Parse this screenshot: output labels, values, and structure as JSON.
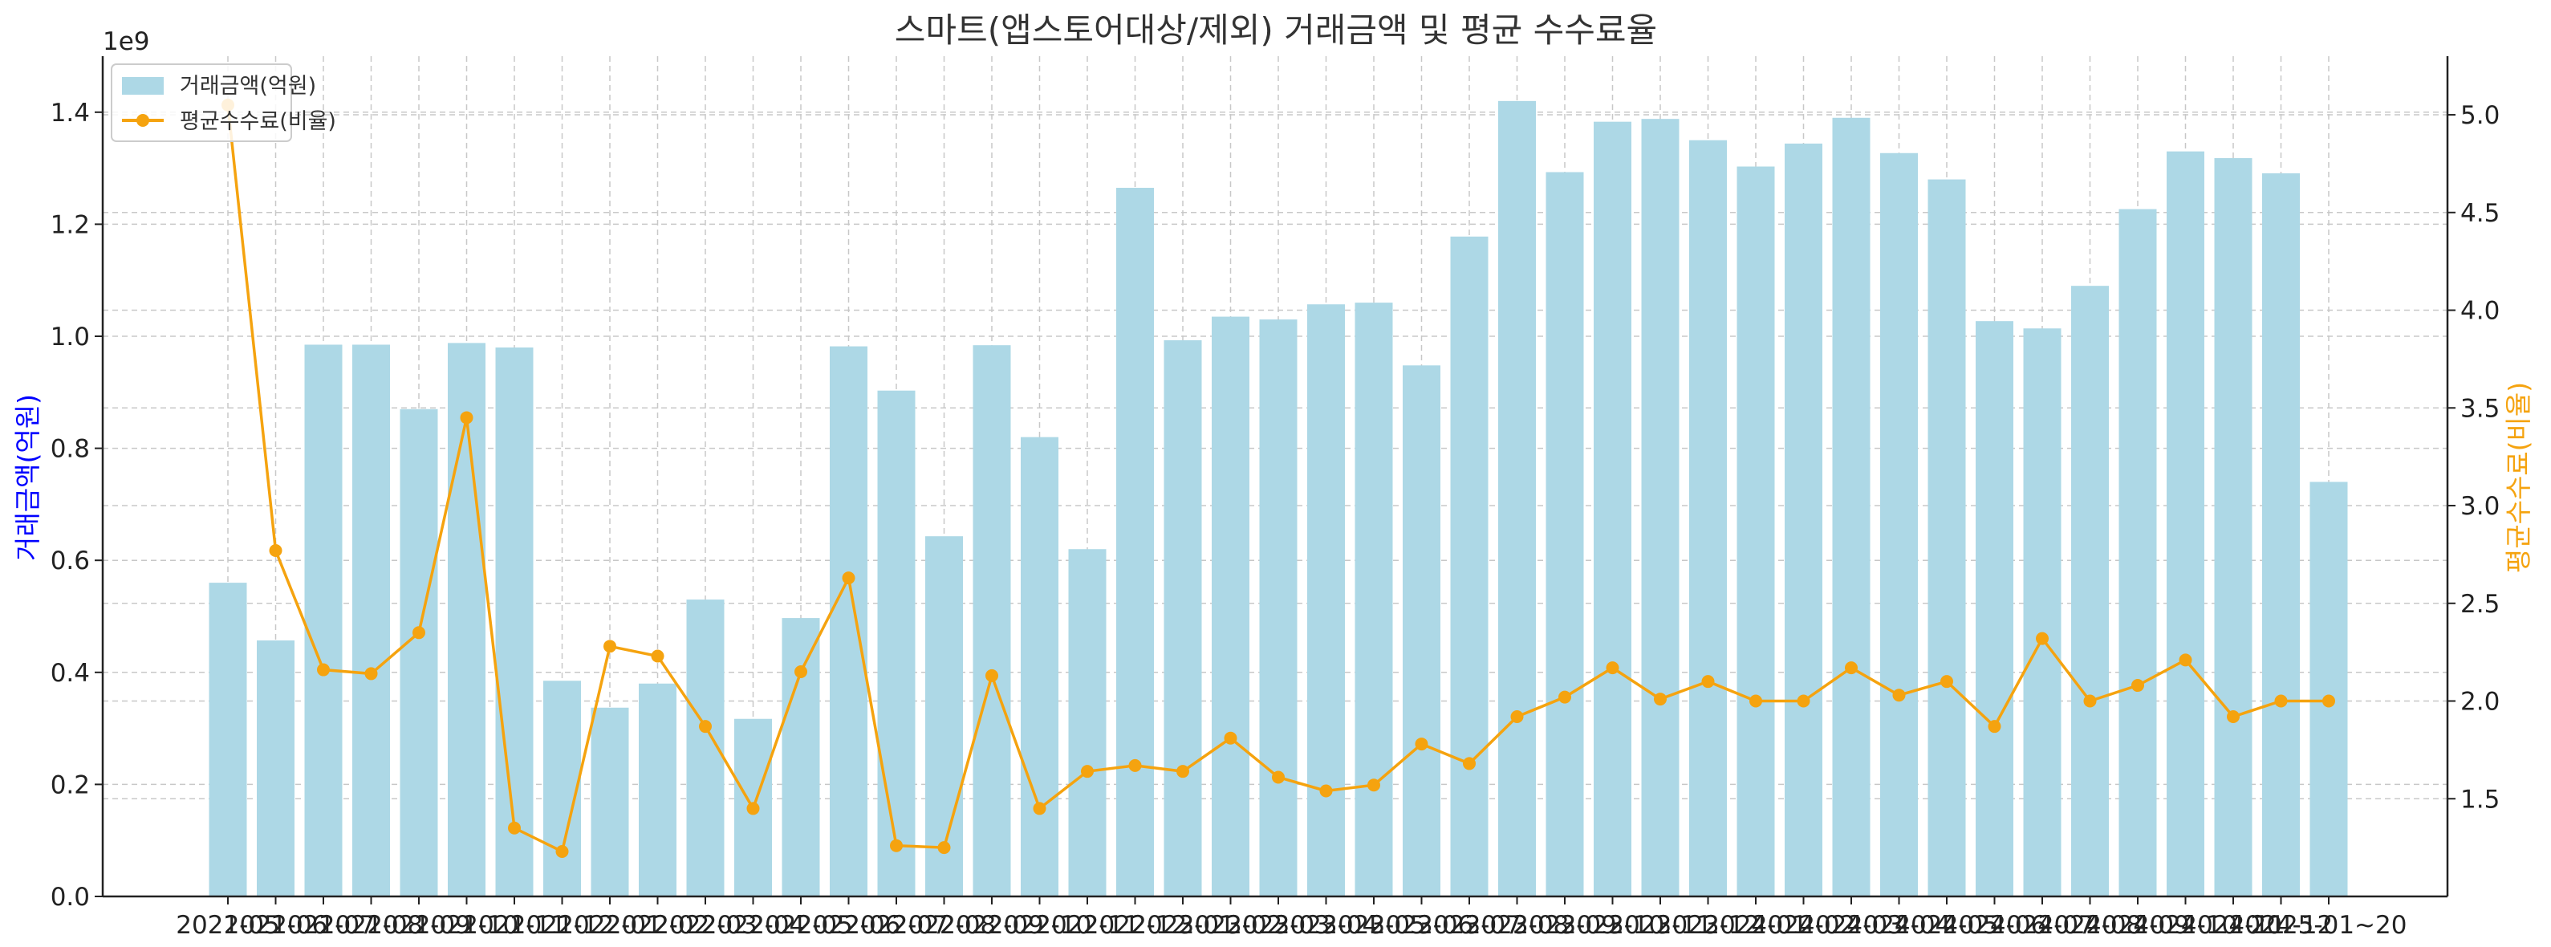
{
  "chart_data": {
    "type": "bar+line",
    "title": "스마트(앱스토어대상/제외) 거래금액 및 평균 수수료율",
    "left_axis": {
      "label": "거래금액(억원)",
      "exponent_label": "1e9",
      "ylim": [
        0,
        1.5
      ],
      "ticks": [
        "0.0",
        "0.2",
        "0.4",
        "0.6",
        "0.8",
        "1.0",
        "1.2",
        "1.4"
      ],
      "color": "#0000ff"
    },
    "right_axis": {
      "label": "평균수수료(비율)",
      "ylim": [
        1.0,
        5.3
      ],
      "ticks": [
        "1.5",
        "2.0",
        "2.5",
        "3.0",
        "3.5",
        "4.0",
        "4.5",
        "5.0"
      ],
      "color": "#f5a30f"
    },
    "categories": [
      "2021-05",
      "2021-06",
      "2021-07",
      "2021-08",
      "2021-09",
      "2021-10",
      "2021-11",
      "2021-12",
      "2022-01",
      "2022-02",
      "2022-03",
      "2022-04",
      "2022-05",
      "2022-06",
      "2022-07",
      "2022-08",
      "2022-09",
      "2022-10",
      "2022-11",
      "2022-12",
      "2023-01",
      "2023-02",
      "2023-03",
      "2023-04",
      "2023-05",
      "2023-06",
      "2023-07",
      "2023-08",
      "2023-09",
      "2023-10",
      "2023-11",
      "2023-12",
      "2024-01",
      "2024-02",
      "2024-03",
      "2024-04",
      "2024-05",
      "2024-06",
      "2024-07",
      "2024-08",
      "2024-09",
      "2024-10",
      "2024-11",
      "2024-12",
      "2025-01~20"
    ],
    "series": [
      {
        "name": "거래금액(억원)",
        "type": "bar",
        "axis": "left",
        "color": "#add8e6",
        "values": [
          0.56,
          0.457,
          0.985,
          0.985,
          0.87,
          0.988,
          0.98,
          0.385,
          0.337,
          0.38,
          0.53,
          0.317,
          0.497,
          0.982,
          0.903,
          0.643,
          0.984,
          0.82,
          0.62,
          1.265,
          0.993,
          1.035,
          1.03,
          1.057,
          1.06,
          0.948,
          1.178,
          1.42,
          1.293,
          1.383,
          1.388,
          1.35,
          1.303,
          1.344,
          1.39,
          1.327,
          1.28,
          1.027,
          1.014,
          1.09,
          1.227,
          1.33,
          1.318,
          1.291,
          0.74
        ]
      },
      {
        "name": "평균수수료(비율)",
        "type": "line",
        "axis": "right",
        "color": "#f5a30f",
        "values": [
          5.05,
          2.77,
          2.16,
          2.14,
          2.35,
          3.45,
          1.35,
          1.23,
          2.28,
          2.23,
          1.87,
          1.45,
          2.15,
          2.63,
          1.26,
          1.25,
          2.13,
          1.45,
          1.64,
          1.67,
          1.64,
          1.81,
          1.61,
          1.54,
          1.57,
          1.78,
          1.68,
          1.92,
          2.02,
          2.17,
          2.01,
          2.1,
          2.0,
          2.0,
          2.17,
          2.03,
          2.1,
          1.87,
          2.32,
          2.0,
          2.08,
          2.21,
          1.92,
          2.0,
          2.0
        ]
      }
    ],
    "legend": {
      "placement": "top-left",
      "entries": [
        "거래금액(억원)",
        "평균수수료(비율)"
      ]
    },
    "grid": true
  }
}
